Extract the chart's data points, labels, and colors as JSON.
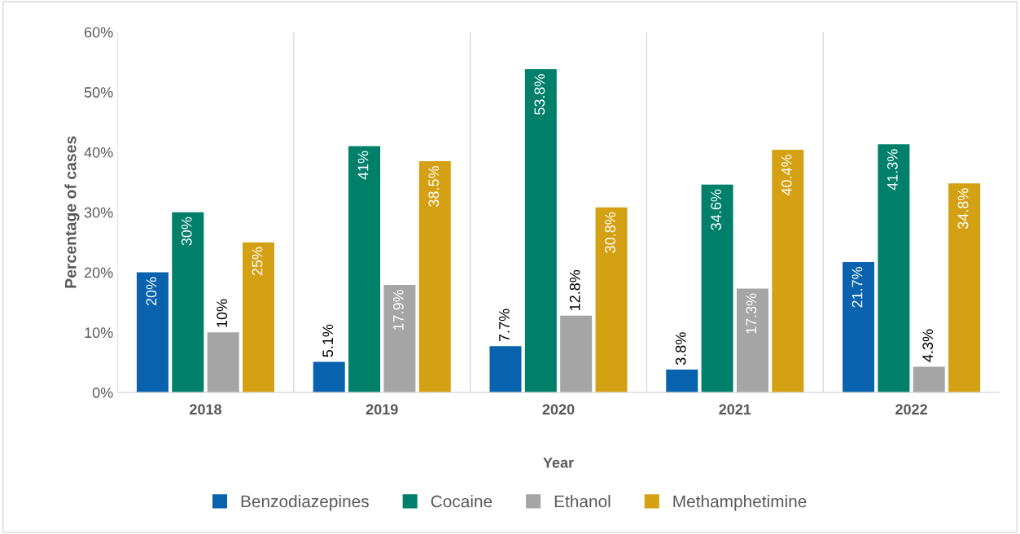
{
  "chart_data": {
    "type": "bar",
    "xlabel": "Year",
    "ylabel": "Percentage of cases",
    "categories": [
      "2018",
      "2019",
      "2020",
      "2021",
      "2022"
    ],
    "series": [
      {
        "name": "Benzodiazepines",
        "color": "#0862ae",
        "values": [
          20,
          5.1,
          7.7,
          3.8,
          21.7
        ],
        "value_labels": [
          "20%",
          "5.1%",
          "7.7%",
          "3.8%",
          "21.7%"
        ]
      },
      {
        "name": "Cocaine",
        "color": "#00806a",
        "values": [
          30,
          41,
          53.8,
          34.6,
          41.3
        ],
        "value_labels": [
          "30%",
          "41%",
          "53.8%",
          "34.6%",
          "41.3%"
        ]
      },
      {
        "name": "Ethanol",
        "color": "#a5a5a5",
        "values": [
          10,
          17.9,
          12.8,
          17.3,
          4.3
        ],
        "value_labels": [
          "10%",
          "17.9%",
          "12.8%",
          "17.3%",
          "4.3%"
        ]
      },
      {
        "name": "Methamphetimine",
        "color": "#d5a114",
        "values": [
          25,
          38.5,
          30.8,
          40.4,
          34.8
        ],
        "value_labels": [
          "25%",
          "38.5%",
          "30.8%",
          "40.4%",
          "34.8%"
        ]
      }
    ],
    "ylim": [
      0,
      60
    ],
    "yticks": [
      {
        "value": 0,
        "label": "0%"
      },
      {
        "value": 10,
        "label": "10%"
      },
      {
        "value": 20,
        "label": "20%"
      },
      {
        "value": 30,
        "label": "30%"
      },
      {
        "value": 40,
        "label": "40%"
      },
      {
        "value": 50,
        "label": "50%"
      },
      {
        "value": 60,
        "label": "60%"
      }
    ],
    "grid": "x",
    "legend": "bottom"
  }
}
